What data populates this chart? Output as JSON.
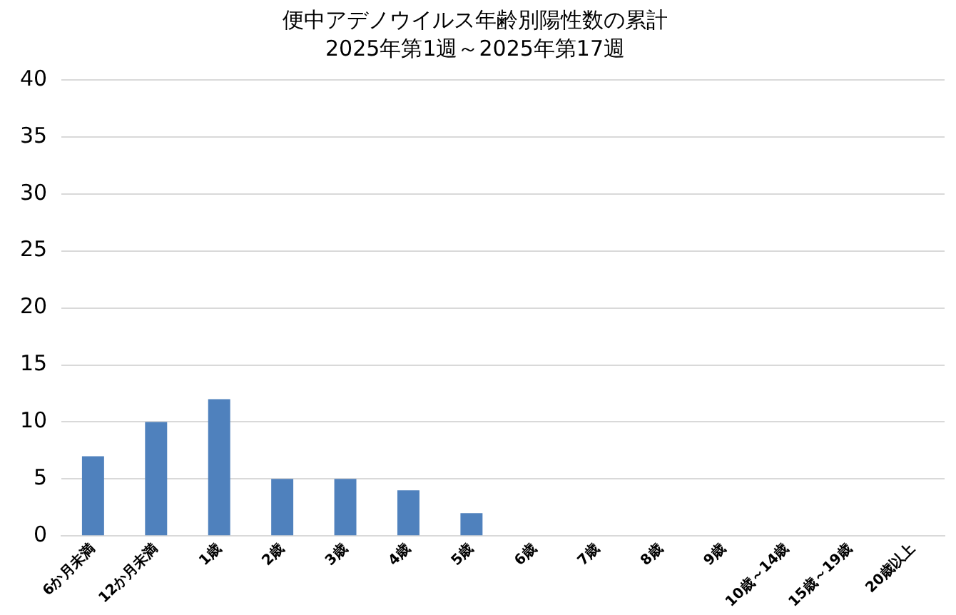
{
  "chart_data": {
    "type": "bar",
    "title": "便中アデノウイルス年齢別陽性数の累計",
    "subtitle": "2025年第1週～2025年第17週",
    "categories": [
      "6か月未満",
      "12か月未満",
      "1歳",
      "2歳",
      "3歳",
      "4歳",
      "5歳",
      "6歳",
      "7歳",
      "8歳",
      "9歳",
      "10歳～14歳",
      "15歳～19歳",
      "20歳以上"
    ],
    "values": [
      7,
      10,
      12,
      5,
      5,
      4,
      2,
      0,
      0,
      0,
      0,
      0,
      0,
      0
    ],
    "color": "#4f81bd",
    "ylim": [
      0,
      40
    ],
    "yticks": [
      0,
      5,
      10,
      15,
      20,
      25,
      30,
      35,
      40
    ],
    "grid": "y",
    "legend": false
  }
}
